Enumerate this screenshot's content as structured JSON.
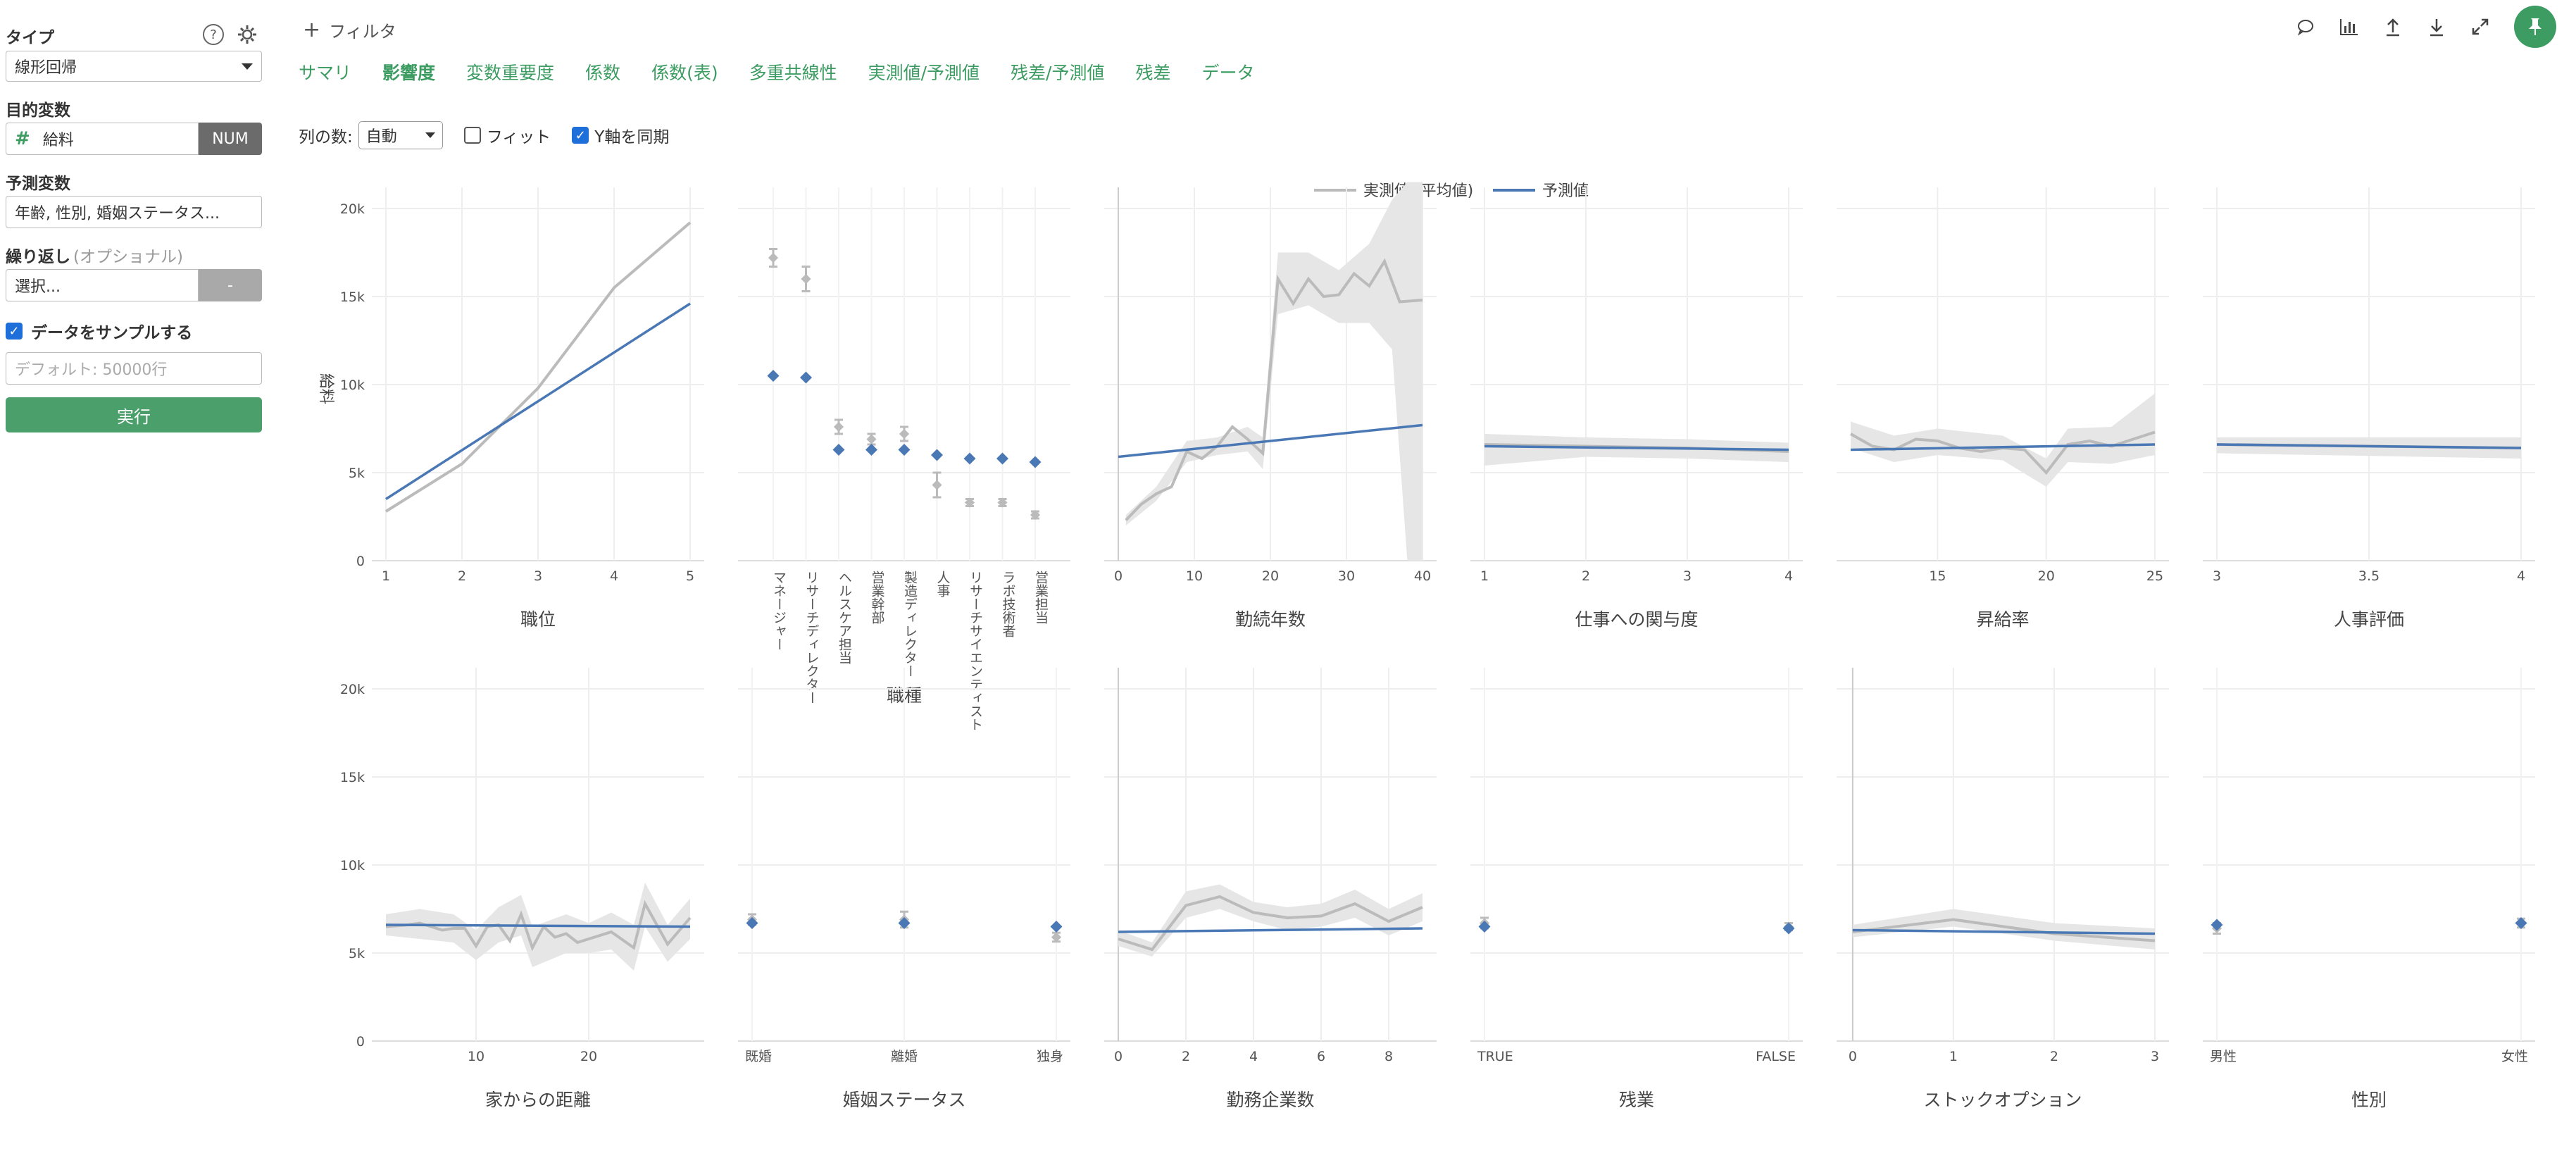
{
  "sidebar": {
    "type_label": "タイプ",
    "help_icon": "help-circle-icon",
    "settings_icon": "gear-icon",
    "type_value": "線形回帰",
    "target_label": "目的変数",
    "target_value": "給料",
    "target_badge": "NUM",
    "predictor_label": "予測変数",
    "predictor_value": "年齢, 性別, 婚姻ステータス...",
    "repeat_label": "繰り返し",
    "repeat_optional": "(オプショナル)",
    "repeat_value": "選択...",
    "repeat_badge": "-",
    "sample_label": "データをサンプルする",
    "sample_placeholder": "デフォルト: 50000行",
    "run_label": "実行"
  },
  "topbar": {
    "filter_label": "フィルタ",
    "icons": [
      "comment-icon",
      "chart-icon",
      "upload-icon",
      "download-icon",
      "expand-icon",
      "pin-icon"
    ]
  },
  "tabs": [
    {
      "label": "サマリ",
      "active": false
    },
    {
      "label": "影響度",
      "active": true
    },
    {
      "label": "変数重要度",
      "active": false
    },
    {
      "label": "係数",
      "active": false
    },
    {
      "label": "係数(表)",
      "active": false
    },
    {
      "label": "多重共線性",
      "active": false
    },
    {
      "label": "実測値/予測値",
      "active": false
    },
    {
      "label": "残差/予測値",
      "active": false
    },
    {
      "label": "残差",
      "active": false
    },
    {
      "label": "データ",
      "active": false
    }
  ],
  "options": {
    "columns_label": "列の数:",
    "columns_value": "自動",
    "fit_label": "フィット",
    "sync_label": "Y軸を同期"
  },
  "chart_data": {
    "type": "line",
    "ylabel": "給料",
    "ylim": [
      0,
      20000
    ],
    "yticks": [
      "0",
      "5k",
      "10k",
      "15k",
      "20k"
    ],
    "legend": {
      "placement": "top-center",
      "entries": [
        "実測値 (平均値)",
        "予測値"
      ]
    },
    "colors": {
      "actual": "#bbbbbb",
      "predicted": "#4a78b5",
      "band": "#e6e6e6"
    },
    "panels": [
      {
        "title": "職位",
        "kind": "num",
        "xlim": [
          1,
          5
        ],
        "xticks": [
          1,
          2,
          3,
          4,
          5
        ],
        "actual": [
          [
            1,
            2800
          ],
          [
            2,
            5500
          ],
          [
            3,
            9800
          ],
          [
            4,
            15500
          ],
          [
            5,
            19200
          ]
        ],
        "predicted": [
          [
            1,
            3500
          ],
          [
            5,
            14600
          ]
        ]
      },
      {
        "title": "職種",
        "kind": "cat",
        "categories": [
          "マネージャー",
          "リサーチディレクター",
          "ヘルスケア担当",
          "営業幹部",
          "製造ディレクター",
          "人事",
          "リサーチサイエンティスト",
          "ラボ技術者",
          "営業担当"
        ],
        "actual": [
          17200,
          16000,
          7600,
          6900,
          7200,
          4300,
          3300,
          3300,
          2600
        ],
        "actual_err": [
          500,
          700,
          400,
          300,
          400,
          700,
          200,
          200,
          200
        ],
        "predicted": [
          10500,
          10400,
          6300,
          6300,
          6300,
          6000,
          5800,
          5800,
          5600
        ]
      },
      {
        "title": "勤続年数",
        "kind": "num",
        "xlim": [
          0,
          40
        ],
        "xticks": [
          0,
          10,
          20,
          30,
          40
        ],
        "actual": [
          [
            1,
            2300
          ],
          [
            3,
            3200
          ],
          [
            5,
            3800
          ],
          [
            7,
            4200
          ],
          [
            9,
            6200
          ],
          [
            11,
            5800
          ],
          [
            13,
            6500
          ],
          [
            15,
            7600
          ],
          [
            17,
            6900
          ],
          [
            19,
            6100
          ],
          [
            21,
            16000
          ],
          [
            23,
            14600
          ],
          [
            25,
            16000
          ],
          [
            27,
            15000
          ],
          [
            29,
            15100
          ],
          [
            31,
            16300
          ],
          [
            33,
            15600
          ],
          [
            35,
            17000
          ],
          [
            37,
            14700
          ],
          [
            40,
            14800
          ]
        ],
        "band": [
          [
            1,
            2000,
            2600
          ],
          [
            5,
            3400,
            4200
          ],
          [
            9,
            5600,
            6800
          ],
          [
            13,
            6000,
            7000
          ],
          [
            17,
            6200,
            7600
          ],
          [
            19,
            5200,
            7000
          ],
          [
            21,
            14000,
            17500
          ],
          [
            25,
            14500,
            17500
          ],
          [
            29,
            13500,
            16500
          ],
          [
            33,
            13500,
            18000
          ],
          [
            36,
            12000,
            20500
          ],
          [
            38,
            0,
            21500
          ],
          [
            40,
            0,
            21500
          ]
        ],
        "predicted": [
          [
            0,
            5900
          ],
          [
            40,
            7700
          ]
        ]
      },
      {
        "title": "仕事への関与度",
        "kind": "num",
        "xlim": [
          1,
          4
        ],
        "xticks": [
          1,
          2,
          3,
          4
        ],
        "actual": [
          [
            1,
            6600
          ],
          [
            2,
            6500
          ],
          [
            3,
            6400
          ],
          [
            4,
            6200
          ]
        ],
        "band": [
          [
            1,
            5400,
            7200
          ],
          [
            2,
            5900,
            7000
          ],
          [
            3,
            5800,
            6900
          ],
          [
            4,
            5600,
            6700
          ]
        ],
        "predicted": [
          [
            1,
            6500
          ],
          [
            4,
            6300
          ]
        ]
      },
      {
        "title": "昇給率",
        "kind": "num",
        "xlim": [
          11,
          25
        ],
        "xticks": [
          15,
          20,
          25
        ],
        "actual": [
          [
            11,
            7200
          ],
          [
            12,
            6500
          ],
          [
            13,
            6300
          ],
          [
            14,
            6900
          ],
          [
            15,
            6800
          ],
          [
            16,
            6400
          ],
          [
            17,
            6200
          ],
          [
            18,
            6400
          ],
          [
            19,
            6300
          ],
          [
            20,
            5000
          ],
          [
            21,
            6600
          ],
          [
            22,
            6800
          ],
          [
            23,
            6500
          ],
          [
            24,
            6900
          ],
          [
            25,
            7300
          ]
        ],
        "band": [
          [
            11,
            6400,
            7900
          ],
          [
            13,
            5600,
            7100
          ],
          [
            15,
            6000,
            7500
          ],
          [
            18,
            5700,
            7100
          ],
          [
            20,
            4200,
            5800
          ],
          [
            21,
            5600,
            7500
          ],
          [
            23,
            5500,
            7600
          ],
          [
            25,
            6000,
            9500
          ]
        ],
        "predicted": [
          [
            11,
            6300
          ],
          [
            25,
            6600
          ]
        ]
      },
      {
        "title": "人事評価",
        "kind": "num",
        "xlim": [
          3,
          4
        ],
        "xticks": [
          "3",
          "3.5",
          "4"
        ],
        "actual": [
          [
            3,
            6600
          ],
          [
            4,
            6400
          ]
        ],
        "band": [
          [
            3,
            6100,
            7000
          ],
          [
            4,
            5800,
            7000
          ]
        ],
        "predicted": [
          [
            3,
            6600
          ],
          [
            4,
            6400
          ]
        ]
      },
      {
        "title": "家からの距離",
        "kind": "num",
        "xlim": [
          2,
          29
        ],
        "xticks": [
          10,
          20
        ],
        "actual": [
          [
            2,
            6500
          ],
          [
            4,
            6600
          ],
          [
            5,
            6700
          ],
          [
            7,
            6300
          ],
          [
            8,
            6400
          ],
          [
            9,
            6400
          ],
          [
            10,
            5400
          ],
          [
            11,
            6500
          ],
          [
            12,
            6600
          ],
          [
            13,
            5700
          ],
          [
            14,
            7200
          ],
          [
            15,
            5300
          ],
          [
            16,
            6500
          ],
          [
            17,
            5900
          ],
          [
            18,
            6100
          ],
          [
            19,
            5600
          ],
          [
            20,
            5800
          ],
          [
            21,
            6000
          ],
          [
            22,
            6200
          ],
          [
            24,
            5300
          ],
          [
            25,
            7800
          ],
          [
            27,
            5500
          ],
          [
            29,
            7000
          ]
        ],
        "band": [
          [
            2,
            6000,
            7200
          ],
          [
            5,
            5800,
            7500
          ],
          [
            8,
            5600,
            7200
          ],
          [
            10,
            4600,
            6300
          ],
          [
            12,
            5600,
            7600
          ],
          [
            14,
            6000,
            8300
          ],
          [
            15,
            4200,
            6500
          ],
          [
            18,
            5000,
            7200
          ],
          [
            20,
            5000,
            6700
          ],
          [
            22,
            5200,
            7300
          ],
          [
            24,
            4000,
            6600
          ],
          [
            25,
            6500,
            9000
          ],
          [
            27,
            4500,
            6600
          ],
          [
            29,
            5800,
            8100
          ]
        ],
        "predicted": [
          [
            2,
            6600
          ],
          [
            29,
            6500
          ]
        ]
      },
      {
        "title": "婚姻ステータス",
        "kind": "cat",
        "categories": [
          "既婚",
          "離婚",
          "独身"
        ],
        "actual": [
          6900,
          6900,
          5900
        ],
        "actual_err": [
          300,
          450,
          250
        ],
        "predicted": [
          6700,
          6700,
          6500
        ]
      },
      {
        "title": "勤務企業数",
        "kind": "num",
        "xlim": [
          0,
          9
        ],
        "xticks": [
          0,
          2,
          4,
          6,
          8
        ],
        "actual": [
          [
            0,
            5800
          ],
          [
            1,
            5200
          ],
          [
            2,
            7700
          ],
          [
            3,
            8200
          ],
          [
            4,
            7300
          ],
          [
            5,
            7000
          ],
          [
            6,
            7100
          ],
          [
            7,
            7800
          ],
          [
            8,
            6800
          ],
          [
            9,
            7600
          ]
        ],
        "band": [
          [
            0,
            5400,
            6300
          ],
          [
            1,
            4800,
            5600
          ],
          [
            2,
            7000,
            8500
          ],
          [
            3,
            7500,
            8900
          ],
          [
            4,
            6800,
            7900
          ],
          [
            5,
            6300,
            7600
          ],
          [
            6,
            6500,
            7800
          ],
          [
            7,
            7000,
            8600
          ],
          [
            8,
            6000,
            7500
          ],
          [
            9,
            6800,
            8400
          ]
        ],
        "predicted": [
          [
            0,
            6200
          ],
          [
            9,
            6400
          ]
        ]
      },
      {
        "title": "残業",
        "kind": "cat",
        "categories": [
          "TRUE",
          "FALSE"
        ],
        "actual": [
          6700,
          6500
        ],
        "actual_err": [
          300,
          200
        ],
        "predicted": [
          6500,
          6400
        ]
      },
      {
        "title": "ストックオプション",
        "kind": "num",
        "xlim": [
          -0.02,
          3
        ],
        "xticks": [
          0,
          1,
          2,
          3
        ],
        "actual": [
          [
            0,
            6200
          ],
          [
            1,
            6900
          ],
          [
            2,
            6100
          ],
          [
            3,
            5700
          ]
        ],
        "band": [
          [
            0,
            5900,
            6600
          ],
          [
            1,
            6500,
            7500
          ],
          [
            2,
            5700,
            6700
          ],
          [
            3,
            5200,
            6400
          ]
        ],
        "predicted": [
          [
            0,
            6300
          ],
          [
            3,
            6100
          ]
        ]
      },
      {
        "title": "性別",
        "kind": "cat",
        "categories": [
          "男性",
          "女性"
        ],
        "actual": [
          6400,
          6700
        ],
        "actual_err": [
          300,
          250
        ],
        "predicted": [
          6600,
          6700
        ]
      }
    ]
  }
}
